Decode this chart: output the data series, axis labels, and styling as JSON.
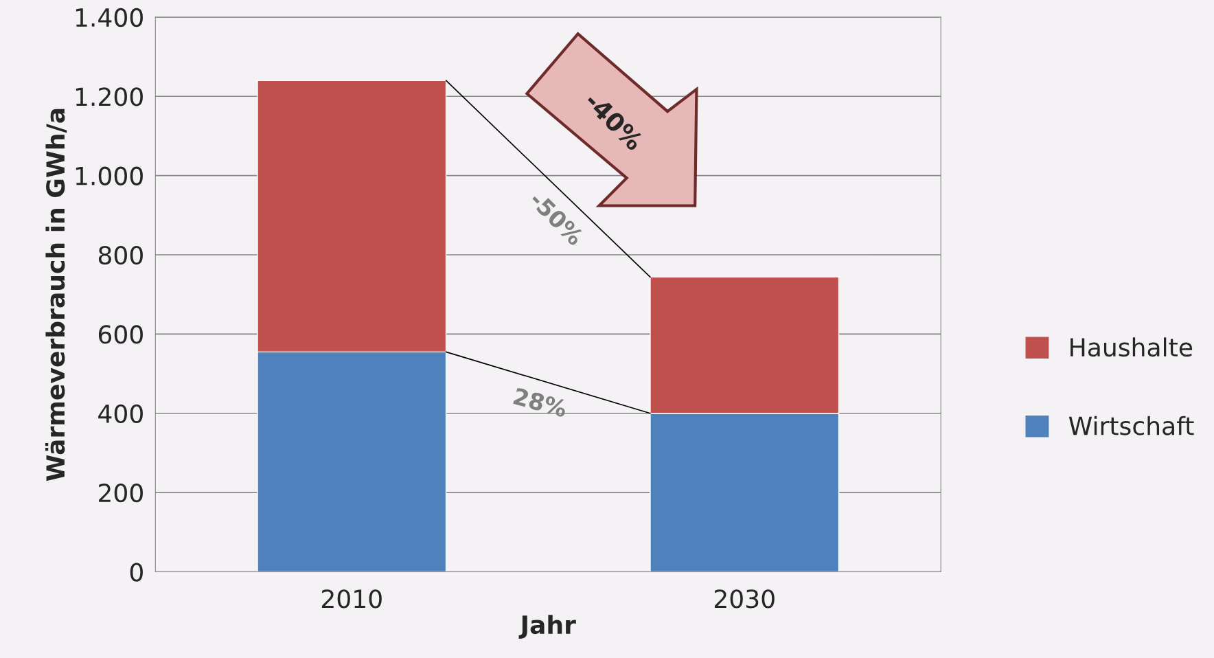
{
  "chart_data": {
    "type": "bar",
    "stacked": true,
    "xlabel": "Jahr",
    "ylabel": "Wärmeverbrauch in GWh/a",
    "categories": [
      "2010",
      "2030"
    ],
    "series": [
      {
        "name": "Wirtschaft",
        "color": "#4f81bd",
        "values": [
          555,
          400
        ]
      },
      {
        "name": "Haushalte",
        "color": "#c0504d",
        "values": [
          685,
          344
        ]
      }
    ],
    "ylim": [
      0,
      1400
    ],
    "yticks": [
      0,
      200,
      400,
      600,
      800,
      {
        "value": 1000,
        "label": "1.000"
      },
      {
        "value": 1200,
        "label": "1.200"
      },
      {
        "value": 1400,
        "label": "1.400"
      }
    ],
    "grid": "y",
    "legend": "right",
    "annotations": [
      "-40%",
      "-50%",
      "28%"
    ]
  }
}
